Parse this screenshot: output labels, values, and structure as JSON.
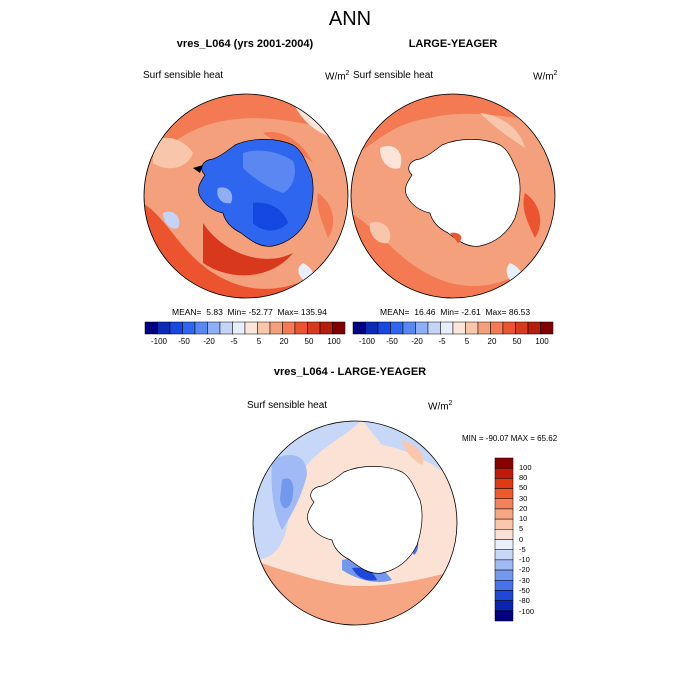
{
  "figure_title": "ANN",
  "colors": {
    "land_white": "#ffffff",
    "coast": "#000000",
    "palette": [
      "#000080",
      "#0a2bb5",
      "#1448e0",
      "#2e66f0",
      "#5b87f3",
      "#8faef5",
      "#c3d4f7",
      "#e8eefa",
      "#fbe4d8",
      "#f8c6ab",
      "#f5a07c",
      "#f37a52",
      "#ec5430",
      "#d8391c",
      "#b51d0c",
      "#800000"
    ]
  },
  "panels": [
    {
      "title": "vres_L064 (yrs 2001-2004)",
      "variable": "Surf sensible heat",
      "units_base": "W/m",
      "units_exp": "2",
      "mean_label": "MEAN=",
      "mean_value": "5.83",
      "min_label": "Min=",
      "min_value": "-52.77",
      "max_label": "Max=",
      "max_value": "135.94",
      "antarctica_fill": "blue",
      "colorbar_labels": [
        "-100",
        "-50",
        "-20",
        "-5",
        "5",
        "20",
        "50",
        "100"
      ]
    },
    {
      "title": "LARGE-YEAGER",
      "variable": "Surf sensible heat",
      "units_base": "W/m",
      "units_exp": "2",
      "mean_label": "MEAN=",
      "mean_value": "16.46",
      "min_label": "Min=",
      "min_value": "-2.61",
      "max_label": "Max=",
      "max_value": "86.53",
      "antarctica_fill": "white",
      "colorbar_labels": [
        "-100",
        "-50",
        "-20",
        "-5",
        "5",
        "20",
        "50",
        "100"
      ]
    }
  ],
  "difference": {
    "title": "vres_L064 - LARGE-YEAGER",
    "variable": "Surf sensible heat",
    "units_base": "W/m",
    "units_exp": "2",
    "stats": "MIN = -90.07 MAX =  65.62",
    "colorbar_labels": [
      "100",
      "80",
      "50",
      "30",
      "20",
      "10",
      "5",
      "0",
      "-5",
      "-10",
      "-20",
      "-30",
      "-50",
      "-80",
      "-100"
    ],
    "colorbar_colors": [
      "#8b0000",
      "#bf1a0a",
      "#e03a14",
      "#ee5a2c",
      "#f3825a",
      "#f6a683",
      "#f9c7ad",
      "#fbe2d4",
      "#eaf0fb",
      "#c7d7f7",
      "#9fbaf4",
      "#7399ef",
      "#4873ea",
      "#1f48d8",
      "#0a23b0",
      "#000080"
    ]
  }
}
